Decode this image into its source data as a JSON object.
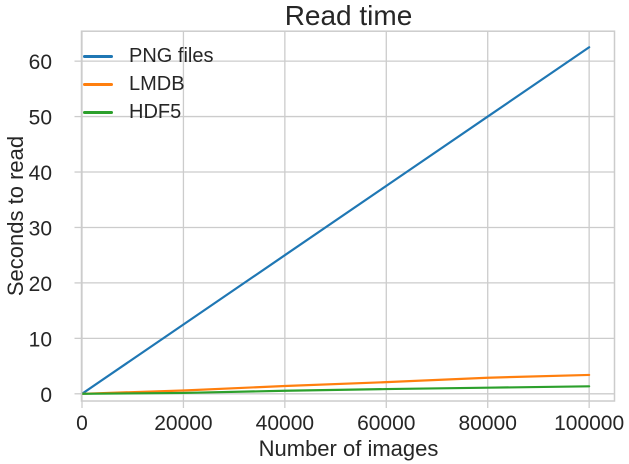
{
  "chart_data": {
    "type": "line",
    "title": "Read time",
    "xlabel": "Number of images",
    "ylabel": "Seconds to read",
    "x": [
      0,
      20000,
      40000,
      60000,
      80000,
      100000
    ],
    "series": [
      {
        "name": "PNG files",
        "color": "#1f77b4",
        "values": [
          0,
          12.5,
          25,
          37.5,
          50,
          62.5
        ]
      },
      {
        "name": "LMDB",
        "color": "#ff7f0e",
        "values": [
          0,
          0.6,
          1.4,
          2.1,
          2.9,
          3.4
        ]
      },
      {
        "name": "HDF5",
        "color": "#2ca02c",
        "values": [
          0,
          0.15,
          0.55,
          0.85,
          1.1,
          1.35
        ]
      }
    ],
    "xticks": [
      0,
      20000,
      40000,
      60000,
      80000,
      100000
    ],
    "xtick_labels": [
      "0",
      "20000",
      "40000",
      "60000",
      "80000",
      "100000"
    ],
    "yticks": [
      0,
      10,
      20,
      30,
      40,
      50,
      60
    ],
    "ytick_labels": [
      "0",
      "10",
      "20",
      "30",
      "40",
      "50",
      "60"
    ],
    "xlim": [
      -100,
      105000
    ],
    "ylim": [
      -1.3,
      65.4
    ],
    "grid": true,
    "legend_position": "upper left",
    "colors": {
      "grid": "#cccccc",
      "spine": "#cccccc",
      "text": "#262626",
      "background": "#ffffff"
    }
  }
}
